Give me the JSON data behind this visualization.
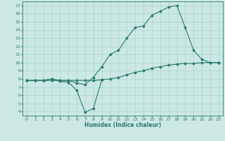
{
  "xlabel": "Humidex (Indice chaleur)",
  "background_color": "#cce8e4",
  "grid_color": "#a8d4ce",
  "line_color": "#2a7a6a",
  "xlim": [
    -0.5,
    23.5
  ],
  "ylim": [
    3.5,
    17.5
  ],
  "xticks": [
    0,
    1,
    2,
    3,
    4,
    5,
    6,
    7,
    8,
    9,
    10,
    11,
    12,
    13,
    14,
    15,
    16,
    17,
    18,
    19,
    20,
    21,
    22,
    23
  ],
  "yticks": [
    4,
    5,
    6,
    7,
    8,
    9,
    10,
    11,
    12,
    13,
    14,
    15,
    16,
    17
  ],
  "line1_x": [
    0,
    1,
    2,
    3,
    4,
    5,
    6,
    7,
    8,
    9,
    10,
    11,
    12,
    13,
    14,
    15,
    16,
    17,
    18,
    19,
    20,
    21,
    22,
    23
  ],
  "line1_y": [
    7.8,
    7.8,
    7.8,
    8.0,
    7.8,
    7.8,
    7.5,
    7.3,
    8.2,
    9.5,
    11.0,
    11.5,
    13.0,
    14.3,
    14.5,
    15.8,
    16.3,
    16.8,
    17.0,
    14.3,
    11.5,
    10.4,
    10.0,
    10.0
  ],
  "line2_x": [
    0,
    1,
    2,
    3,
    4,
    5,
    6,
    7,
    8,
    9
  ],
  "line2_y": [
    7.8,
    7.8,
    7.8,
    8.0,
    7.7,
    7.6,
    6.6,
    3.9,
    4.4,
    7.9
  ],
  "line3_x": [
    0,
    1,
    2,
    3,
    4,
    5,
    6,
    7,
    8,
    9,
    10,
    11,
    12,
    13,
    14,
    15,
    16,
    17,
    18,
    19,
    20,
    21,
    22,
    23
  ],
  "line3_y": [
    7.8,
    7.8,
    7.8,
    7.8,
    7.8,
    7.8,
    7.8,
    7.8,
    7.8,
    7.9,
    8.0,
    8.2,
    8.5,
    8.8,
    9.0,
    9.3,
    9.5,
    9.7,
    9.8,
    9.9,
    9.9,
    10.0,
    10.0,
    10.0
  ]
}
